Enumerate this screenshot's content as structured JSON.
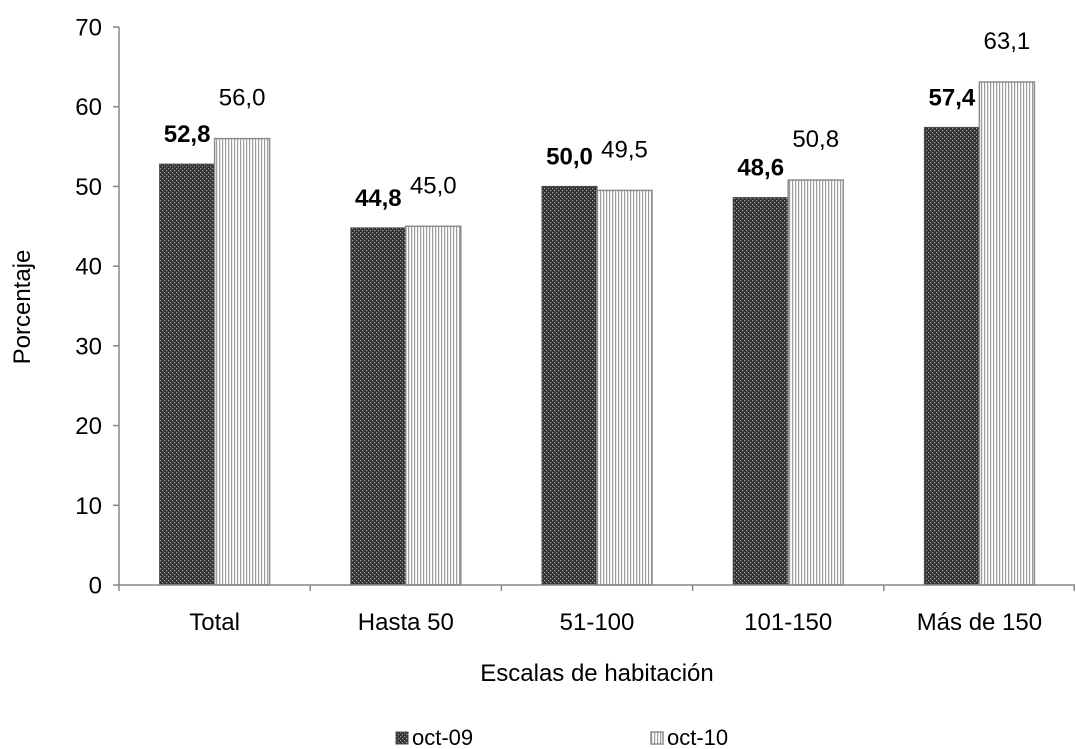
{
  "chart_data": {
    "type": "bar",
    "xlabel": "Escalas de habitación",
    "ylabel": "Porcentaje",
    "categories": [
      "Total",
      "Hasta 50",
      "51-100",
      "101-150",
      "Más de 150"
    ],
    "series": [
      {
        "name": "oct-09",
        "values": [
          52.8,
          44.8,
          50.0,
          48.6,
          57.4
        ],
        "labels": [
          "52,8",
          "44,8",
          "50,0",
          "48,6",
          "57,4"
        ],
        "fill": "#333333",
        "pattern": "dots",
        "pattern_color": "#a6a6a6"
      },
      {
        "name": "oct-10",
        "values": [
          56.0,
          45.0,
          49.5,
          50.8,
          63.1
        ],
        "labels": [
          "56,0",
          "45,0",
          "49,5",
          "50,8",
          "63,1"
        ],
        "fill": "#ffffff",
        "pattern": "vertical-stripes",
        "pattern_color": "#9c9c9c"
      }
    ],
    "ylim": [
      0,
      70
    ],
    "yticks": [
      0,
      10,
      20,
      30,
      40,
      50,
      60,
      70
    ],
    "grid": false,
    "legend": "bottom"
  }
}
